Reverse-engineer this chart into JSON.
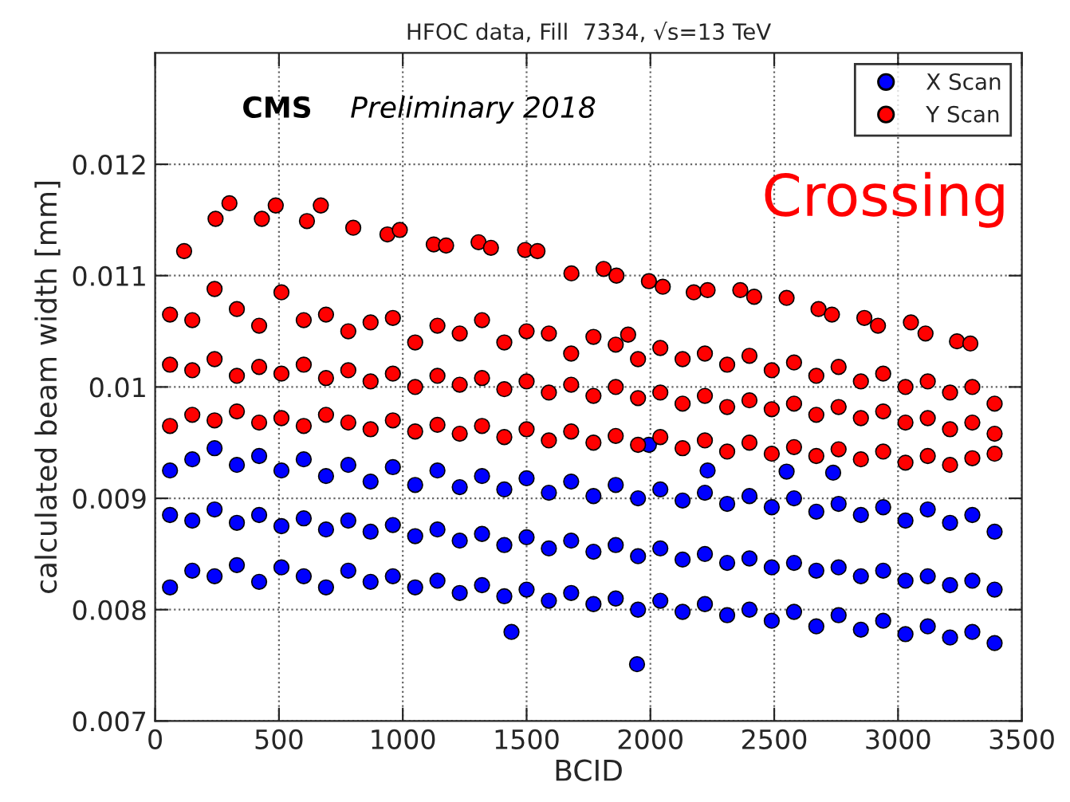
{
  "chart_data": {
    "type": "scatter",
    "title": "HFOC data, Fill  7334, √s=13 TeV",
    "xlabel": "BCID",
    "ylabel": "calculated beam width [mm]",
    "annotations": [
      "CMS",
      "Preliminary 2018",
      "Crossing"
    ],
    "xlim": [
      0,
      3500
    ],
    "xticks": [
      0,
      500,
      1000,
      1500,
      2000,
      2500,
      3000,
      3500
    ],
    "ylim": [
      0.007,
      0.013
    ],
    "yticks": [
      0.007,
      0.008,
      0.009,
      0.01,
      0.011,
      0.012
    ],
    "grid": true,
    "legend": "top right",
    "marker": "circle",
    "series": [
      {
        "name": "X Scan",
        "color": "#0000ff",
        "x": [
          60,
          150,
          240,
          330,
          420,
          510,
          600,
          690,
          780,
          870,
          960,
          1050,
          1140,
          1230,
          1320,
          1410,
          1500,
          1590,
          1680,
          1770,
          1860,
          1950,
          2040,
          2130,
          2220,
          2310,
          2400,
          2490,
          2580,
          2670,
          2760,
          2850,
          2940,
          3030,
          3120,
          3210,
          3300,
          3390,
          60,
          150,
          240,
          330,
          420,
          510,
          600,
          690,
          780,
          870,
          960,
          1050,
          1140,
          1230,
          1320,
          1410,
          1500,
          1590,
          1680,
          1770,
          1860,
          1950,
          2040,
          2130,
          2220,
          2310,
          2400,
          2490,
          2580,
          2670,
          2760,
          2850,
          2940,
          3030,
          3120,
          3210,
          3300,
          3390,
          60,
          150,
          240,
          330,
          420,
          510,
          600,
          690,
          780,
          870,
          960,
          1050,
          1140,
          1230,
          1320,
          1410,
          1500,
          1590,
          1680,
          1770,
          1860,
          1950,
          2040,
          2130,
          2220,
          2310,
          2400,
          2490,
          2580,
          2670,
          2760,
          2850,
          2940,
          3030,
          3120,
          3210,
          3300,
          3390,
          1439,
          1946,
          1994,
          2231,
          2550,
          2738
        ],
        "values": [
          0.00925,
          0.00935,
          0.00945,
          0.0093,
          0.00938,
          0.00925,
          0.00935,
          0.0092,
          0.0093,
          0.00915,
          0.00928,
          0.00912,
          0.00925,
          0.0091,
          0.0092,
          0.00908,
          0.00918,
          0.00905,
          0.00915,
          0.00902,
          0.00912,
          0.009,
          0.00908,
          0.00898,
          0.00905,
          0.00895,
          0.00902,
          0.00892,
          0.009,
          0.00888,
          0.00895,
          0.00885,
          0.00892,
          0.0088,
          0.0089,
          0.00878,
          0.00885,
          0.0087,
          0.00885,
          0.0088,
          0.0089,
          0.00878,
          0.00885,
          0.00875,
          0.00882,
          0.00872,
          0.0088,
          0.0087,
          0.00876,
          0.00866,
          0.00872,
          0.00862,
          0.00868,
          0.00858,
          0.00865,
          0.00855,
          0.00862,
          0.00852,
          0.00858,
          0.00848,
          0.00855,
          0.00845,
          0.0085,
          0.00842,
          0.00846,
          0.00838,
          0.00842,
          0.00835,
          0.00838,
          0.0083,
          0.00835,
          0.00826,
          0.0083,
          0.00822,
          0.00826,
          0.00818,
          0.0082,
          0.00835,
          0.0083,
          0.0084,
          0.00825,
          0.00838,
          0.0083,
          0.0082,
          0.00835,
          0.00825,
          0.0083,
          0.0082,
          0.00826,
          0.00815,
          0.00822,
          0.00812,
          0.00818,
          0.00808,
          0.00815,
          0.00805,
          0.0081,
          0.008,
          0.00808,
          0.00798,
          0.00805,
          0.00795,
          0.008,
          0.0079,
          0.00798,
          0.00785,
          0.00795,
          0.00782,
          0.0079,
          0.00778,
          0.00785,
          0.00775,
          0.0078,
          0.0077,
          0.0078,
          0.00751,
          0.00948,
          0.00925,
          0.00924,
          0.00923
        ]
      },
      {
        "name": "Y Scan",
        "color": "#ff0000",
        "x": [
          60,
          150,
          240,
          330,
          420,
          510,
          600,
          690,
          780,
          870,
          960,
          1050,
          1140,
          1230,
          1320,
          1410,
          1500,
          1590,
          1680,
          1770,
          1860,
          1950,
          2040,
          2130,
          2220,
          2310,
          2400,
          2490,
          2580,
          2670,
          2760,
          2850,
          2940,
          3030,
          3120,
          3210,
          3300,
          3390,
          60,
          150,
          240,
          330,
          420,
          510,
          600,
          690,
          780,
          870,
          960,
          1050,
          1140,
          1230,
          1320,
          1410,
          1500,
          1590,
          1680,
          1770,
          1860,
          1950,
          2040,
          2130,
          2220,
          2310,
          2400,
          2490,
          2580,
          2670,
          2760,
          2850,
          2940,
          3030,
          3120,
          3210,
          3300,
          3390,
          60,
          150,
          240,
          330,
          420,
          510,
          600,
          690,
          780,
          870,
          960,
          1050,
          1140,
          1230,
          1320,
          1410,
          1500,
          1590,
          1680,
          1770,
          1860,
          1950,
          2040,
          2130,
          2220,
          2310,
          2400,
          2490,
          2580,
          2670,
          2760,
          2850,
          2940,
          3030,
          3120,
          3210,
          3300,
          3390,
          117,
          244,
          300,
          431,
          487,
          613,
          669,
          800,
          938,
          988,
          1125,
          1175,
          1306,
          1356,
          1494,
          1544,
          1681,
          1811,
          1863,
          1910,
          1994,
          2050,
          2175,
          2231,
          2363,
          2419,
          2550,
          2679,
          2733,
          2864,
          2919,
          3052,
          3111,
          3238,
          3292
        ],
        "values": [
          0.01065,
          0.0106,
          0.01088,
          0.0107,
          0.01055,
          0.01085,
          0.0106,
          0.01065,
          0.0105,
          0.01058,
          0.01062,
          0.0104,
          0.01055,
          0.01048,
          0.0106,
          0.0104,
          0.0105,
          0.01048,
          0.0103,
          0.01045,
          0.01038,
          0.01025,
          0.01035,
          0.01025,
          0.0103,
          0.0102,
          0.01028,
          0.01015,
          0.01022,
          0.0101,
          0.01018,
          0.01005,
          0.01012,
          0.01,
          0.01005,
          0.00995,
          0.01,
          0.00985,
          0.0102,
          0.01015,
          0.01025,
          0.0101,
          0.01018,
          0.01012,
          0.0102,
          0.01008,
          0.01015,
          0.01005,
          0.01012,
          0.01,
          0.0101,
          0.01002,
          0.01008,
          0.00998,
          0.01005,
          0.00995,
          0.01002,
          0.00992,
          0.01,
          0.0099,
          0.00995,
          0.00985,
          0.00992,
          0.00982,
          0.00988,
          0.0098,
          0.00985,
          0.00975,
          0.00982,
          0.00972,
          0.00978,
          0.00968,
          0.00972,
          0.00962,
          0.00968,
          0.00958,
          0.00965,
          0.00975,
          0.0097,
          0.00978,
          0.00968,
          0.00972,
          0.00965,
          0.00975,
          0.00968,
          0.00962,
          0.0097,
          0.0096,
          0.00966,
          0.00958,
          0.00965,
          0.00955,
          0.00962,
          0.00952,
          0.0096,
          0.0095,
          0.00956,
          0.00948,
          0.00955,
          0.00945,
          0.00952,
          0.00942,
          0.0095,
          0.0094,
          0.00946,
          0.00938,
          0.00944,
          0.00935,
          0.00942,
          0.00932,
          0.00938,
          0.0093,
          0.00936,
          0.0094,
          0.01122,
          0.01151,
          0.01165,
          0.01151,
          0.01163,
          0.01149,
          0.01163,
          0.01143,
          0.01137,
          0.01141,
          0.01128,
          0.01127,
          0.0113,
          0.01125,
          0.01123,
          0.01122,
          0.01102,
          0.01106,
          0.011,
          0.01047,
          0.01095,
          0.0109,
          0.01085,
          0.01087,
          0.01087,
          0.01081,
          0.0108,
          0.0107,
          0.01065,
          0.01062,
          0.01055,
          0.01058,
          0.01048,
          0.01041,
          0.01039
        ]
      }
    ]
  }
}
